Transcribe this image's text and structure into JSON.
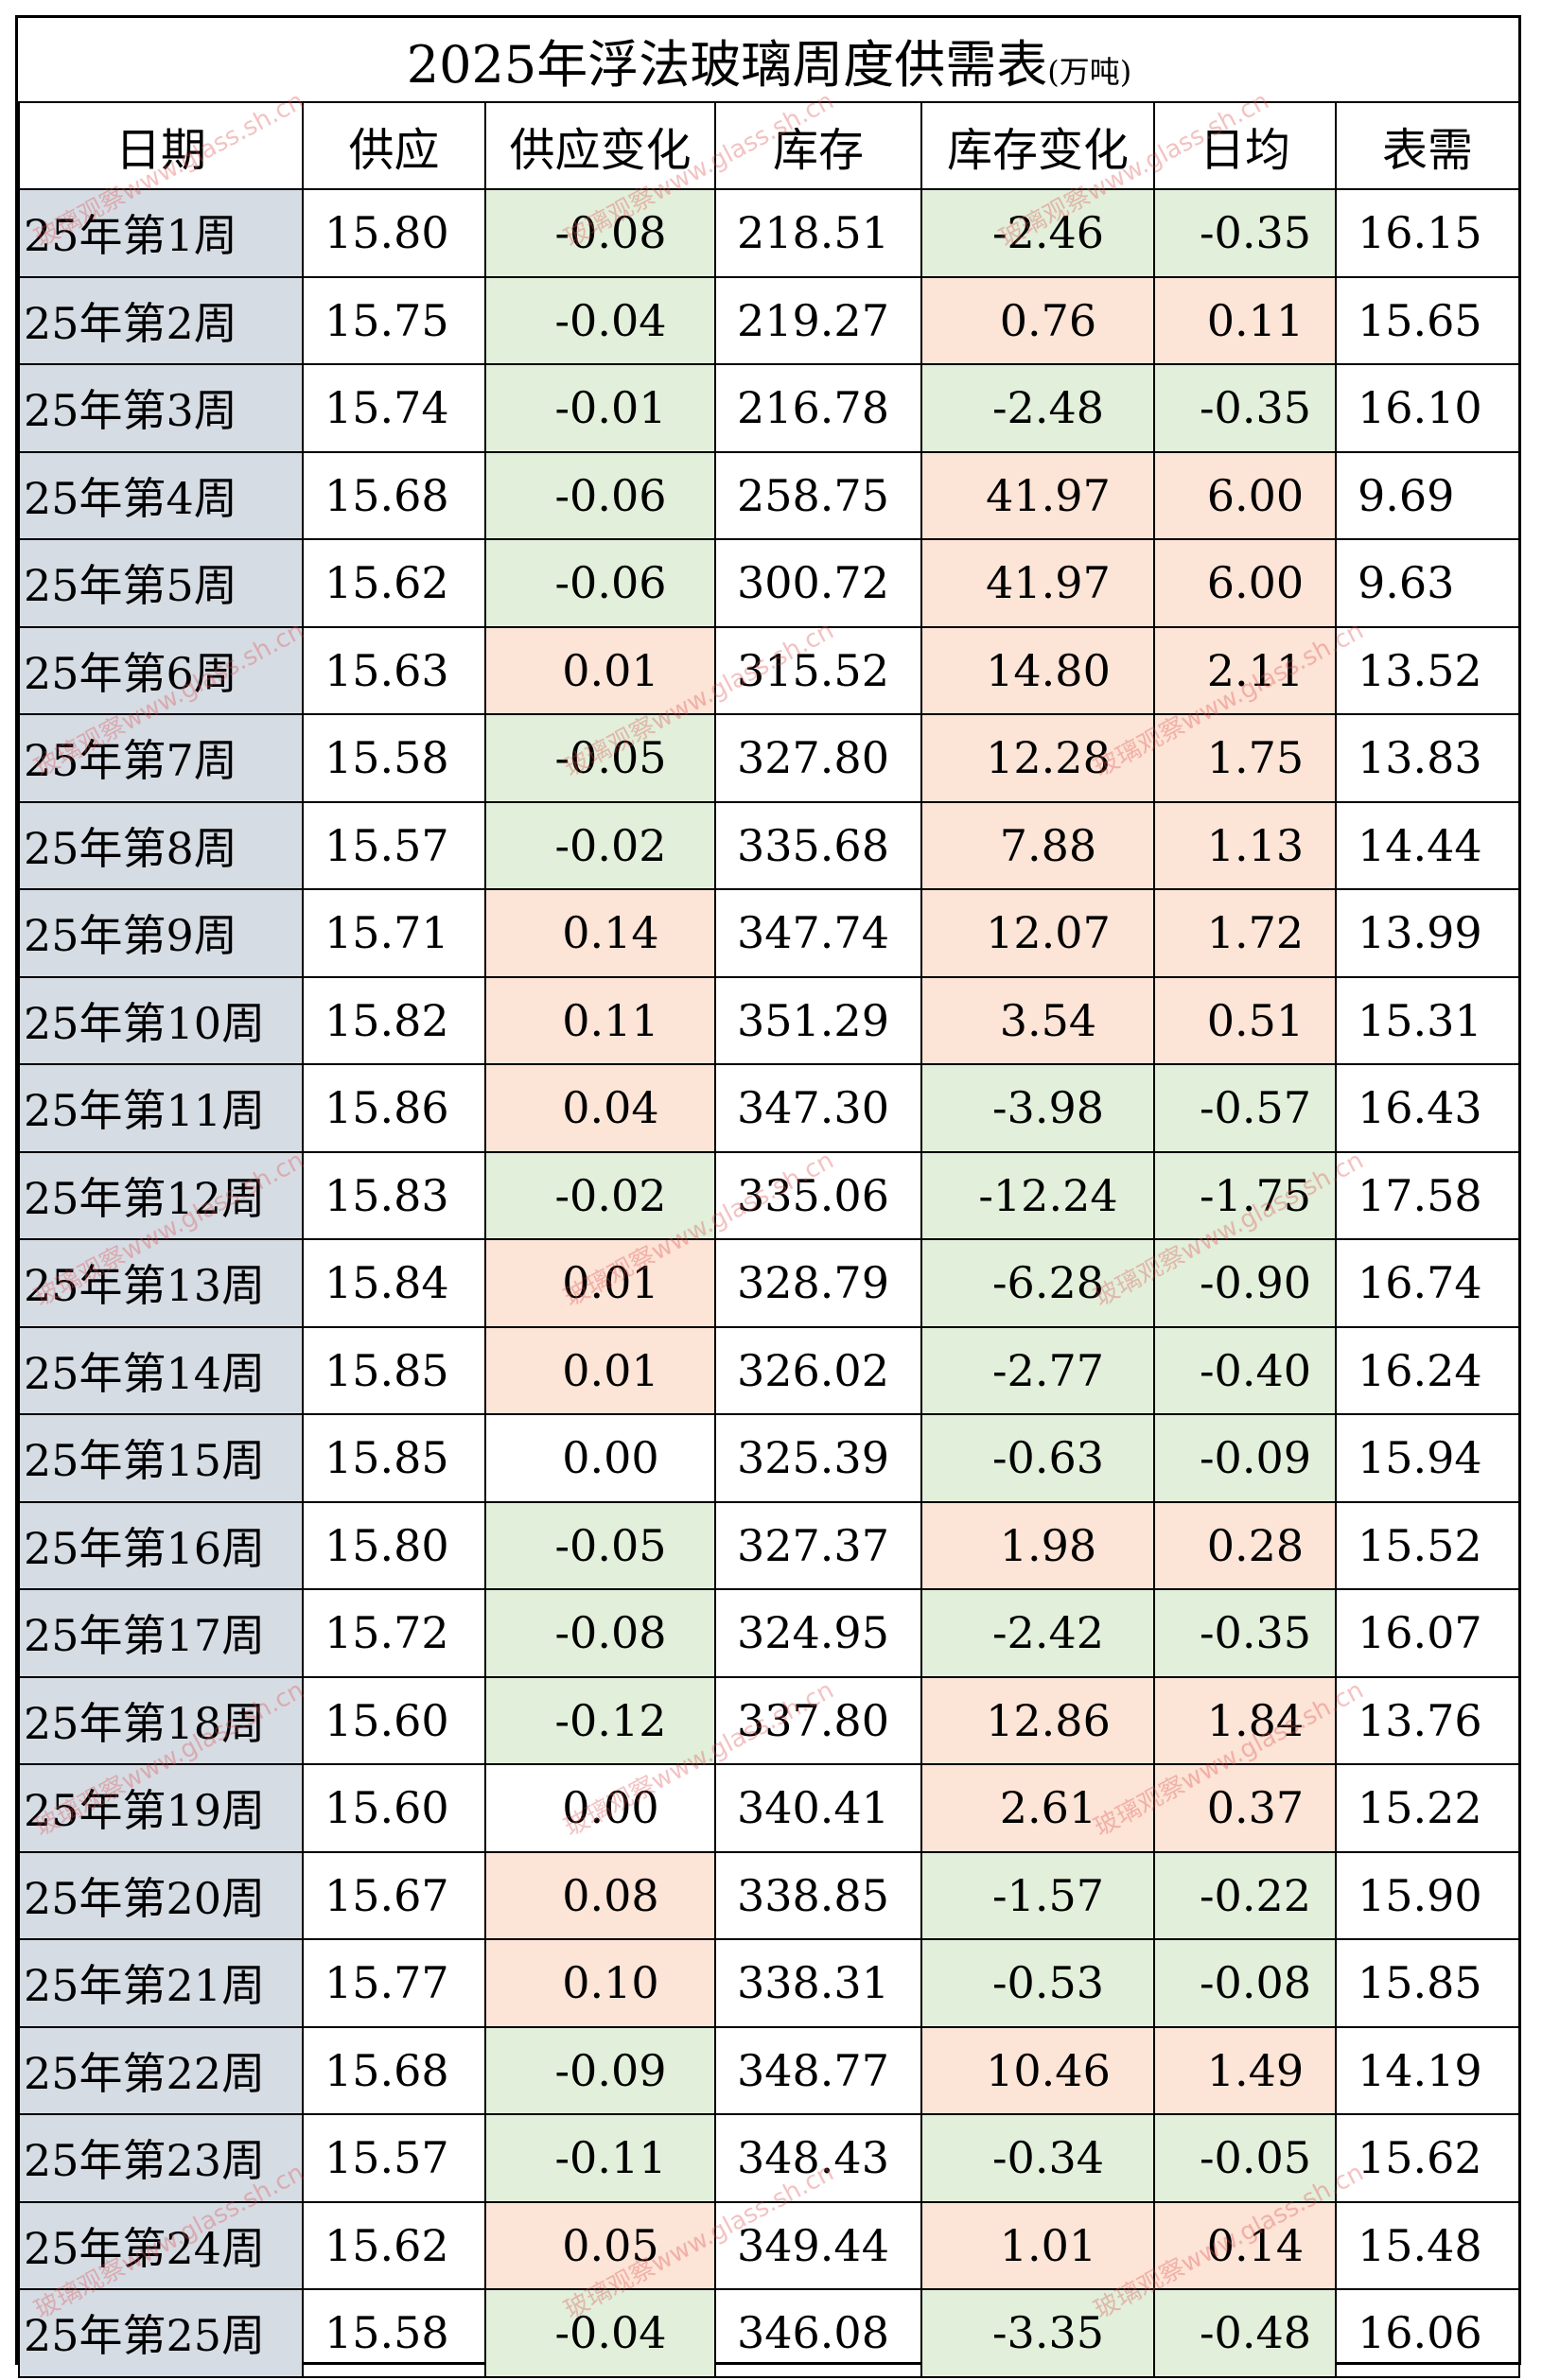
{
  "title": "2025年浮法玻璃周度供需表",
  "unit": "(万吨)",
  "headers": [
    "日期",
    "供应",
    "供应变化",
    "库存",
    "库存变化",
    "日均",
    "表需"
  ],
  "watermark": "玻璃观察www.glass.sh.cn",
  "colors": {
    "increase": "#fce4d6",
    "decrease": "#e2efda",
    "date_column": "#d6dce4"
  },
  "rows": [
    {
      "week": "25年第1周",
      "supply": "15.80",
      "supply_change": "-0.08",
      "inventory": "218.51",
      "inventory_change": "-2.46",
      "daily_avg": "-0.35",
      "apparent_demand": "16.15"
    },
    {
      "week": "25年第2周",
      "supply": "15.75",
      "supply_change": "-0.04",
      "inventory": "219.27",
      "inventory_change": "0.76",
      "daily_avg": "0.11",
      "apparent_demand": "15.65"
    },
    {
      "week": "25年第3周",
      "supply": "15.74",
      "supply_change": "-0.01",
      "inventory": "216.78",
      "inventory_change": "-2.48",
      "daily_avg": "-0.35",
      "apparent_demand": "16.10"
    },
    {
      "week": "25年第4周",
      "supply": "15.68",
      "supply_change": "-0.06",
      "inventory": "258.75",
      "inventory_change": "41.97",
      "daily_avg": "6.00",
      "apparent_demand": "9.69"
    },
    {
      "week": "25年第5周",
      "supply": "15.62",
      "supply_change": "-0.06",
      "inventory": "300.72",
      "inventory_change": "41.97",
      "daily_avg": "6.00",
      "apparent_demand": "9.63"
    },
    {
      "week": "25年第6周",
      "supply": "15.63",
      "supply_change": "0.01",
      "inventory": "315.52",
      "inventory_change": "14.80",
      "daily_avg": "2.11",
      "apparent_demand": "13.52"
    },
    {
      "week": "25年第7周",
      "supply": "15.58",
      "supply_change": "-0.05",
      "inventory": "327.80",
      "inventory_change": "12.28",
      "daily_avg": "1.75",
      "apparent_demand": "13.83"
    },
    {
      "week": "25年第8周",
      "supply": "15.57",
      "supply_change": "-0.02",
      "inventory": "335.68",
      "inventory_change": "7.88",
      "daily_avg": "1.13",
      "apparent_demand": "14.44"
    },
    {
      "week": "25年第9周",
      "supply": "15.71",
      "supply_change": "0.14",
      "inventory": "347.74",
      "inventory_change": "12.07",
      "daily_avg": "1.72",
      "apparent_demand": "13.99"
    },
    {
      "week": "25年第10周",
      "supply": "15.82",
      "supply_change": "0.11",
      "inventory": "351.29",
      "inventory_change": "3.54",
      "daily_avg": "0.51",
      "apparent_demand": "15.31"
    },
    {
      "week": "25年第11周",
      "supply": "15.86",
      "supply_change": "0.04",
      "inventory": "347.30",
      "inventory_change": "-3.98",
      "daily_avg": "-0.57",
      "apparent_demand": "16.43"
    },
    {
      "week": "25年第12周",
      "supply": "15.83",
      "supply_change": "-0.02",
      "inventory": "335.06",
      "inventory_change": "-12.24",
      "daily_avg": "-1.75",
      "apparent_demand": "17.58"
    },
    {
      "week": "25年第13周",
      "supply": "15.84",
      "supply_change": "0.01",
      "inventory": "328.79",
      "inventory_change": "-6.28",
      "daily_avg": "-0.90",
      "apparent_demand": "16.74"
    },
    {
      "week": "25年第14周",
      "supply": "15.85",
      "supply_change": "0.01",
      "inventory": "326.02",
      "inventory_change": "-2.77",
      "daily_avg": "-0.40",
      "apparent_demand": "16.24"
    },
    {
      "week": "25年第15周",
      "supply": "15.85",
      "supply_change": "0.00",
      "inventory": "325.39",
      "inventory_change": "-0.63",
      "daily_avg": "-0.09",
      "apparent_demand": "15.94"
    },
    {
      "week": "25年第16周",
      "supply": "15.80",
      "supply_change": "-0.05",
      "inventory": "327.37",
      "inventory_change": "1.98",
      "daily_avg": "0.28",
      "apparent_demand": "15.52"
    },
    {
      "week": "25年第17周",
      "supply": "15.72",
      "supply_change": "-0.08",
      "inventory": "324.95",
      "inventory_change": "-2.42",
      "daily_avg": "-0.35",
      "apparent_demand": "16.07"
    },
    {
      "week": "25年第18周",
      "supply": "15.60",
      "supply_change": "-0.12",
      "inventory": "337.80",
      "inventory_change": "12.86",
      "daily_avg": "1.84",
      "apparent_demand": "13.76"
    },
    {
      "week": "25年第19周",
      "supply": "15.60",
      "supply_change": "0.00",
      "inventory": "340.41",
      "inventory_change": "2.61",
      "daily_avg": "0.37",
      "apparent_demand": "15.22"
    },
    {
      "week": "25年第20周",
      "supply": "15.67",
      "supply_change": "0.08",
      "inventory": "338.85",
      "inventory_change": "-1.57",
      "daily_avg": "-0.22",
      "apparent_demand": "15.90"
    },
    {
      "week": "25年第21周",
      "supply": "15.77",
      "supply_change": "0.10",
      "inventory": "338.31",
      "inventory_change": "-0.53",
      "daily_avg": "-0.08",
      "apparent_demand": "15.85"
    },
    {
      "week": "25年第22周",
      "supply": "15.68",
      "supply_change": "-0.09",
      "inventory": "348.77",
      "inventory_change": "10.46",
      "daily_avg": "1.49",
      "apparent_demand": "14.19"
    },
    {
      "week": "25年第23周",
      "supply": "15.57",
      "supply_change": "-0.11",
      "inventory": "348.43",
      "inventory_change": "-0.34",
      "daily_avg": "-0.05",
      "apparent_demand": "15.62"
    },
    {
      "week": "25年第24周",
      "supply": "15.62",
      "supply_change": "0.05",
      "inventory": "349.44",
      "inventory_change": "1.01",
      "daily_avg": "0.14",
      "apparent_demand": "15.48"
    },
    {
      "week": "25年第25周",
      "supply": "15.58",
      "supply_change": "-0.04",
      "inventory": "346.08",
      "inventory_change": "-3.35",
      "daily_avg": "-0.48",
      "apparent_demand": "16.06"
    }
  ]
}
